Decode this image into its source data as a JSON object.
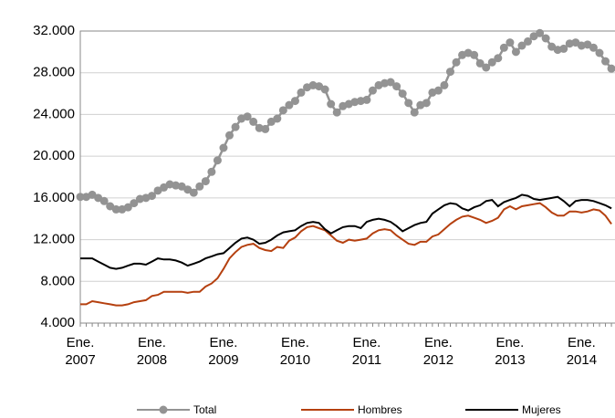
{
  "chart_data": {
    "type": "line",
    "categories": [
      "Ene. 2007",
      null,
      null,
      null,
      null,
      null,
      null,
      null,
      null,
      null,
      null,
      null,
      "Ene. 2008",
      null,
      null,
      null,
      null,
      null,
      null,
      null,
      null,
      null,
      null,
      null,
      "Ene. 2009",
      null,
      null,
      null,
      null,
      null,
      null,
      null,
      null,
      null,
      null,
      null,
      "Ene. 2010",
      null,
      null,
      null,
      null,
      null,
      null,
      null,
      null,
      null,
      null,
      null,
      "Ene. 2011",
      null,
      null,
      null,
      null,
      null,
      null,
      null,
      null,
      null,
      null,
      null,
      "Ene. 2012",
      null,
      null,
      null,
      null,
      null,
      null,
      null,
      null,
      null,
      null,
      null,
      "Ene. 2013",
      null,
      null,
      null,
      null,
      null,
      null,
      null,
      null,
      null,
      null,
      null,
      "Ene. 2014",
      null,
      null,
      null,
      null,
      null
    ],
    "series": [
      {
        "name": "Total",
        "color": "#939393",
        "marker": true,
        "values": [
          16100,
          16100,
          16300,
          16000,
          15700,
          15200,
          14900,
          14900,
          15100,
          15500,
          15900,
          16000,
          16200,
          16700,
          17000,
          17300,
          17200,
          17100,
          16800,
          16500,
          17100,
          17600,
          18500,
          19600,
          20800,
          22000,
          22800,
          23600,
          23800,
          23300,
          22700,
          22600,
          23300,
          23600,
          24400,
          24900,
          25300,
          26100,
          26600,
          26800,
          26700,
          26400,
          25000,
          24200,
          24800,
          25000,
          25200,
          25300,
          25400,
          26300,
          26800,
          27000,
          27100,
          26700,
          26000,
          25100,
          24200,
          24900,
          25100,
          26100,
          26300,
          26800,
          28100,
          29000,
          29700,
          29900,
          29700,
          28900,
          28500,
          29000,
          29400,
          30400,
          30900,
          30000,
          30600,
          31000,
          31500,
          31800,
          31300,
          30500,
          30200,
          30300,
          30800,
          30900,
          30600,
          30700,
          30400,
          29900,
          29100,
          28400
        ]
      },
      {
        "name": "Hombres",
        "color": "#b5400f",
        "values": [
          5800,
          5800,
          6100,
          6000,
          5900,
          5800,
          5700,
          5700,
          5800,
          6000,
          6100,
          6200,
          6600,
          6700,
          7000,
          7000,
          7000,
          7000,
          6900,
          7000,
          7000,
          7500,
          7800,
          8300,
          9200,
          10200,
          10800,
          11300,
          11500,
          11600,
          11200,
          11000,
          10900,
          11300,
          11200,
          11900,
          12200,
          12800,
          13200,
          13300,
          13100,
          12900,
          12400,
          11900,
          11700,
          12000,
          11900,
          12000,
          12100,
          12600,
          12900,
          13000,
          12900,
          12400,
          12000,
          11600,
          11500,
          11800,
          11800,
          12300,
          12500,
          13000,
          13500,
          13900,
          14200,
          14300,
          14100,
          13900,
          13600,
          13800,
          14100,
          14900,
          15200,
          14900,
          15200,
          15300,
          15400,
          15500,
          15100,
          14600,
          14300,
          14300,
          14700,
          14700,
          14600,
          14700,
          14900,
          14800,
          14300,
          13500
        ]
      },
      {
        "name": "Mujeres",
        "color": "#000000",
        "values": [
          10200,
          10200,
          10200,
          9900,
          9600,
          9300,
          9200,
          9300,
          9500,
          9700,
          9700,
          9600,
          9900,
          10200,
          10100,
          10100,
          10000,
          9800,
          9500,
          9700,
          9900,
          10200,
          10400,
          10600,
          10700,
          11200,
          11700,
          12100,
          12200,
          12000,
          11600,
          11700,
          12000,
          12400,
          12700,
          12800,
          12900,
          13300,
          13600,
          13700,
          13600,
          13000,
          12600,
          12900,
          13200,
          13300,
          13300,
          13100,
          13700,
          13900,
          14000,
          13900,
          13700,
          13300,
          12800,
          13100,
          13400,
          13600,
          13700,
          14500,
          14900,
          15300,
          15500,
          15400,
          15000,
          14800,
          15100,
          15300,
          15700,
          15800,
          15200,
          15600,
          15800,
          16000,
          16300,
          16200,
          15900,
          15800,
          15900,
          16000,
          16100,
          15700,
          15200,
          15700,
          15800,
          15800,
          15700,
          15500,
          15300,
          15000
        ]
      }
    ],
    "ylim": [
      4000,
      32000
    ],
    "yticks": [
      {
        "value": 4000,
        "label": "4.000"
      },
      {
        "value": 8000,
        "label": "8.000"
      },
      {
        "value": 12000,
        "label": "12.000"
      },
      {
        "value": 16000,
        "label": "16.000"
      },
      {
        "value": 20000,
        "label": "20.000"
      },
      {
        "value": 24000,
        "label": "24.000"
      },
      {
        "value": 28000,
        "label": "28.000"
      },
      {
        "value": 32000,
        "label": "32.000"
      }
    ],
    "grid": true,
    "legend": "bottom"
  }
}
